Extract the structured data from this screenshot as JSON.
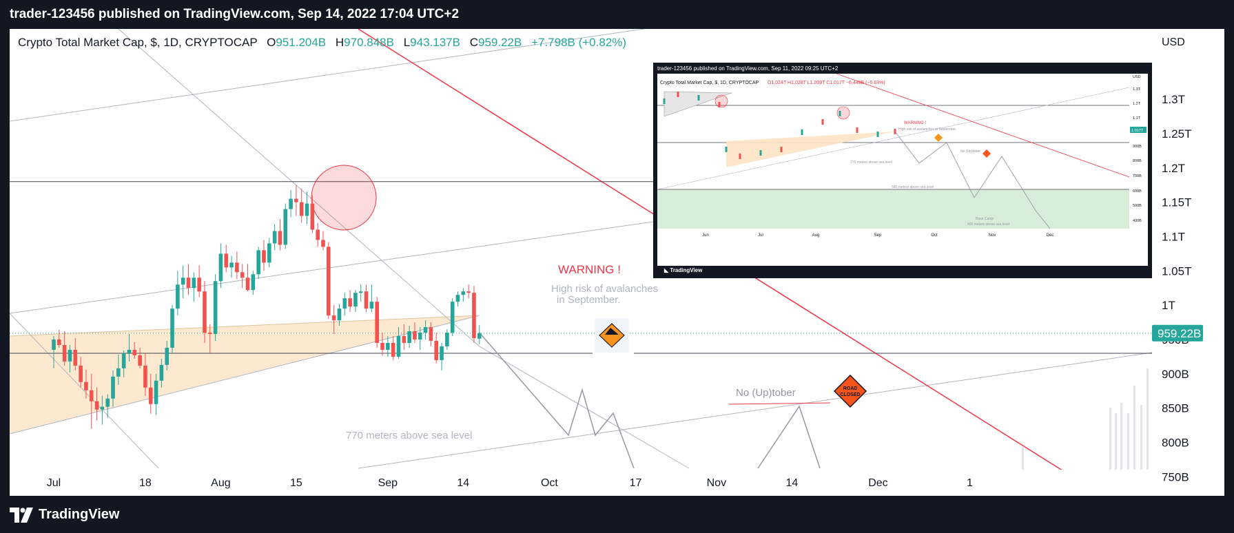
{
  "header": {
    "publisher_line": "trader-123456 published on TradingView.com, Sep 14, 2022 17:04 UTC+2"
  },
  "legend": {
    "symbol": "Crypto Total Market Cap, $, 1D, CRYPTOCAP",
    "o_label": "O",
    "o_value": "951.204B",
    "h_label": "H",
    "h_value": "970.848B",
    "l_label": "L",
    "l_value": "943.137B",
    "c_label": "C",
    "c_value": "959.22B",
    "change": "+7.798B (+0.82%)"
  },
  "annotations": {
    "warning": "WARNING !",
    "risk_line1": "High risk of avalanches",
    "risk_line2": "in September.",
    "no_uptober": "No (Up)tober",
    "road_closed_1": "ROAD",
    "road_closed_2": "CLOSED",
    "sea_level_770": "770  meters above sea level"
  },
  "footer": {
    "brand": "TradingView"
  },
  "inset": {
    "title": "trader-123456 published on TradingView.com, Sep 11, 2022 09:25 UTC+2",
    "legend": "Crypto Total Market Cap, $, 1D, CRYPTOCAP",
    "ohlc": "O1.024T  H1.028T  L1.009T  C1.017T  −6.449B (−0.63%)",
    "warning": "WARNING !",
    "risk": "High risk of avalanches in September.",
    "no_uptober": "No (Up)tober",
    "sea770": "770  meters above sea level",
    "sea580": "580 meters above sea level",
    "base_camp": "Base Camp",
    "sea400": "400 meters above sea level",
    "price_tag": "1.017T",
    "y_labels": [
      "USD",
      "1.3T",
      "1.2T",
      "1.1T",
      "1.017T",
      "900B",
      "800B",
      "700B",
      "600B",
      "500B",
      "400B"
    ],
    "x_labels": [
      "Jun",
      "Jul",
      "Aug",
      "Sep",
      "Oct",
      "Nov",
      "Dec"
    ],
    "brand": "TradingView"
  },
  "chart_data": {
    "type": "candlestick",
    "title": "Crypto Total Market Cap, $, 1D, CRYPTOCAP",
    "y_unit": "USD",
    "ylim": [
      750,
      1360
    ],
    "y_ticks": [
      {
        "label": "1.3T",
        "value": 1300
      },
      {
        "label": "1.25T",
        "value": 1250
      },
      {
        "label": "1.2T",
        "value": 1200
      },
      {
        "label": "1.15T",
        "value": 1150
      },
      {
        "label": "1.1T",
        "value": 1100
      },
      {
        "label": "1.05T",
        "value": 1050
      },
      {
        "label": "1T",
        "value": 1000
      },
      {
        "label": "950B",
        "value": 950
      },
      {
        "label": "900B",
        "value": 900
      },
      {
        "label": "850B",
        "value": 850
      },
      {
        "label": "800B",
        "value": 800
      },
      {
        "label": "750B",
        "value": 750
      }
    ],
    "x_ticks": [
      "Jul",
      "18",
      "Aug",
      "15",
      "Sep",
      "14",
      "Oct",
      "17",
      "Nov",
      "14",
      "Dec",
      "1"
    ],
    "x_tick_days": [
      0,
      17,
      31,
      45,
      62,
      76,
      92,
      108,
      123,
      137,
      153,
      170
    ],
    "current_price_label": "959.22B",
    "current_price": 959.22,
    "horizontal_levels": [
      1180,
      930
    ],
    "candles": [
      {
        "d": 0,
        "o": 935,
        "h": 955,
        "l": 908,
        "c": 950
      },
      {
        "d": 1,
        "o": 950,
        "h": 964,
        "l": 938,
        "c": 942
      },
      {
        "d": 2,
        "o": 942,
        "h": 962,
        "l": 912,
        "c": 918
      },
      {
        "d": 3,
        "o": 918,
        "h": 942,
        "l": 902,
        "c": 935
      },
      {
        "d": 4,
        "o": 935,
        "h": 952,
        "l": 905,
        "c": 912
      },
      {
        "d": 5,
        "o": 912,
        "h": 925,
        "l": 880,
        "c": 888
      },
      {
        "d": 6,
        "o": 888,
        "h": 906,
        "l": 864,
        "c": 876
      },
      {
        "d": 7,
        "o": 876,
        "h": 900,
        "l": 820,
        "c": 860
      },
      {
        "d": 8,
        "o": 860,
        "h": 880,
        "l": 832,
        "c": 848
      },
      {
        "d": 9,
        "o": 848,
        "h": 868,
        "l": 826,
        "c": 852
      },
      {
        "d": 10,
        "o": 852,
        "h": 870,
        "l": 836,
        "c": 864
      },
      {
        "d": 11,
        "o": 864,
        "h": 905,
        "l": 852,
        "c": 896
      },
      {
        "d": 12,
        "o": 896,
        "h": 928,
        "l": 884,
        "c": 908
      },
      {
        "d": 13,
        "o": 908,
        "h": 934,
        "l": 895,
        "c": 930
      },
      {
        "d": 14,
        "o": 930,
        "h": 958,
        "l": 918,
        "c": 935
      },
      {
        "d": 15,
        "o": 935,
        "h": 946,
        "l": 922,
        "c": 927
      },
      {
        "d": 16,
        "o": 927,
        "h": 938,
        "l": 908,
        "c": 912
      },
      {
        "d": 17,
        "o": 912,
        "h": 930,
        "l": 868,
        "c": 880
      },
      {
        "d": 18,
        "o": 880,
        "h": 900,
        "l": 842,
        "c": 856
      },
      {
        "d": 19,
        "o": 856,
        "h": 900,
        "l": 840,
        "c": 890
      },
      {
        "d": 20,
        "o": 890,
        "h": 922,
        "l": 880,
        "c": 913
      },
      {
        "d": 21,
        "o": 913,
        "h": 948,
        "l": 905,
        "c": 938
      },
      {
        "d": 22,
        "o": 938,
        "h": 1000,
        "l": 930,
        "c": 995
      },
      {
        "d": 23,
        "o": 995,
        "h": 1050,
        "l": 985,
        "c": 1030
      },
      {
        "d": 24,
        "o": 1030,
        "h": 1058,
        "l": 1010,
        "c": 1040
      },
      {
        "d": 25,
        "o": 1040,
        "h": 1060,
        "l": 1015,
        "c": 1025
      },
      {
        "d": 26,
        "o": 1025,
        "h": 1048,
        "l": 1005,
        "c": 1040
      },
      {
        "d": 27,
        "o": 1040,
        "h": 1058,
        "l": 1012,
        "c": 1020
      },
      {
        "d": 28,
        "o": 1020,
        "h": 1035,
        "l": 945,
        "c": 960
      },
      {
        "d": 29,
        "o": 960,
        "h": 972,
        "l": 930,
        "c": 958
      },
      {
        "d": 30,
        "o": 958,
        "h": 1045,
        "l": 948,
        "c": 1035
      },
      {
        "d": 31,
        "o": 1035,
        "h": 1090,
        "l": 1025,
        "c": 1075
      },
      {
        "d": 32,
        "o": 1075,
        "h": 1088,
        "l": 1048,
        "c": 1055
      },
      {
        "d": 33,
        "o": 1055,
        "h": 1072,
        "l": 1040,
        "c": 1062
      },
      {
        "d": 34,
        "o": 1062,
        "h": 1078,
        "l": 1038,
        "c": 1048
      },
      {
        "d": 35,
        "o": 1048,
        "h": 1060,
        "l": 1025,
        "c": 1040
      },
      {
        "d": 36,
        "o": 1040,
        "h": 1060,
        "l": 1020,
        "c": 1022
      },
      {
        "d": 37,
        "o": 1022,
        "h": 1050,
        "l": 1015,
        "c": 1045
      },
      {
        "d": 38,
        "o": 1045,
        "h": 1085,
        "l": 1038,
        "c": 1080
      },
      {
        "d": 39,
        "o": 1080,
        "h": 1095,
        "l": 1050,
        "c": 1062
      },
      {
        "d": 40,
        "o": 1062,
        "h": 1098,
        "l": 1055,
        "c": 1090
      },
      {
        "d": 41,
        "o": 1090,
        "h": 1118,
        "l": 1080,
        "c": 1108
      },
      {
        "d": 42,
        "o": 1108,
        "h": 1125,
        "l": 1080,
        "c": 1088
      },
      {
        "d": 43,
        "o": 1088,
        "h": 1148,
        "l": 1082,
        "c": 1140
      },
      {
        "d": 44,
        "o": 1140,
        "h": 1168,
        "l": 1128,
        "c": 1155
      },
      {
        "d": 45,
        "o": 1155,
        "h": 1175,
        "l": 1130,
        "c": 1150
      },
      {
        "d": 46,
        "o": 1150,
        "h": 1170,
        "l": 1120,
        "c": 1130
      },
      {
        "d": 47,
        "o": 1130,
        "h": 1165,
        "l": 1118,
        "c": 1148
      },
      {
        "d": 48,
        "o": 1148,
        "h": 1160,
        "l": 1105,
        "c": 1110
      },
      {
        "d": 49,
        "o": 1110,
        "h": 1120,
        "l": 1085,
        "c": 1095
      },
      {
        "d": 50,
        "o": 1095,
        "h": 1108,
        "l": 1080,
        "c": 1085
      },
      {
        "d": 51,
        "o": 1085,
        "h": 1092,
        "l": 980,
        "c": 985
      },
      {
        "d": 52,
        "o": 985,
        "h": 1000,
        "l": 958,
        "c": 978
      },
      {
        "d": 53,
        "o": 978,
        "h": 1002,
        "l": 970,
        "c": 995
      },
      {
        "d": 54,
        "o": 995,
        "h": 1018,
        "l": 985,
        "c": 1010
      },
      {
        "d": 55,
        "o": 1010,
        "h": 1022,
        "l": 990,
        "c": 998
      },
      {
        "d": 56,
        "o": 998,
        "h": 1022,
        "l": 990,
        "c": 1018
      },
      {
        "d": 57,
        "o": 1018,
        "h": 1030,
        "l": 1005,
        "c": 1020
      },
      {
        "d": 58,
        "o": 1020,
        "h": 1030,
        "l": 990,
        "c": 995
      },
      {
        "d": 59,
        "o": 995,
        "h": 1030,
        "l": 990,
        "c": 1005
      },
      {
        "d": 60,
        "o": 1005,
        "h": 1012,
        "l": 938,
        "c": 945
      },
      {
        "d": 61,
        "o": 945,
        "h": 960,
        "l": 926,
        "c": 935
      },
      {
        "d": 62,
        "o": 935,
        "h": 955,
        "l": 925,
        "c": 945
      },
      {
        "d": 63,
        "o": 945,
        "h": 955,
        "l": 920,
        "c": 925
      },
      {
        "d": 64,
        "o": 925,
        "h": 968,
        "l": 922,
        "c": 955
      },
      {
        "d": 65,
        "o": 955,
        "h": 972,
        "l": 935,
        "c": 945
      },
      {
        "d": 66,
        "o": 945,
        "h": 970,
        "l": 938,
        "c": 962
      },
      {
        "d": 67,
        "o": 962,
        "h": 975,
        "l": 945,
        "c": 950
      },
      {
        "d": 68,
        "o": 950,
        "h": 968,
        "l": 935,
        "c": 960
      },
      {
        "d": 69,
        "o": 960,
        "h": 978,
        "l": 950,
        "c": 968
      },
      {
        "d": 70,
        "o": 968,
        "h": 975,
        "l": 940,
        "c": 948
      },
      {
        "d": 71,
        "o": 948,
        "h": 960,
        "l": 915,
        "c": 920
      },
      {
        "d": 72,
        "o": 920,
        "h": 945,
        "l": 905,
        "c": 940
      },
      {
        "d": 73,
        "o": 940,
        "h": 965,
        "l": 935,
        "c": 960
      },
      {
        "d": 74,
        "o": 960,
        "h": 1010,
        "l": 955,
        "c": 1005
      },
      {
        "d": 75,
        "o": 1005,
        "h": 1020,
        "l": 998,
        "c": 1015
      },
      {
        "d": 76,
        "o": 1015,
        "h": 1025,
        "l": 1005,
        "c": 1020
      },
      {
        "d": 77,
        "o": 1020,
        "h": 1030,
        "l": 1010,
        "c": 1018
      },
      {
        "d": 78,
        "o": 1018,
        "h": 1028,
        "l": 945,
        "c": 952
      },
      {
        "d": 79,
        "o": 951.204,
        "h": 970.848,
        "l": 943.137,
        "c": 959.22
      }
    ],
    "volume_note": "volume bars shown faintly at right"
  }
}
